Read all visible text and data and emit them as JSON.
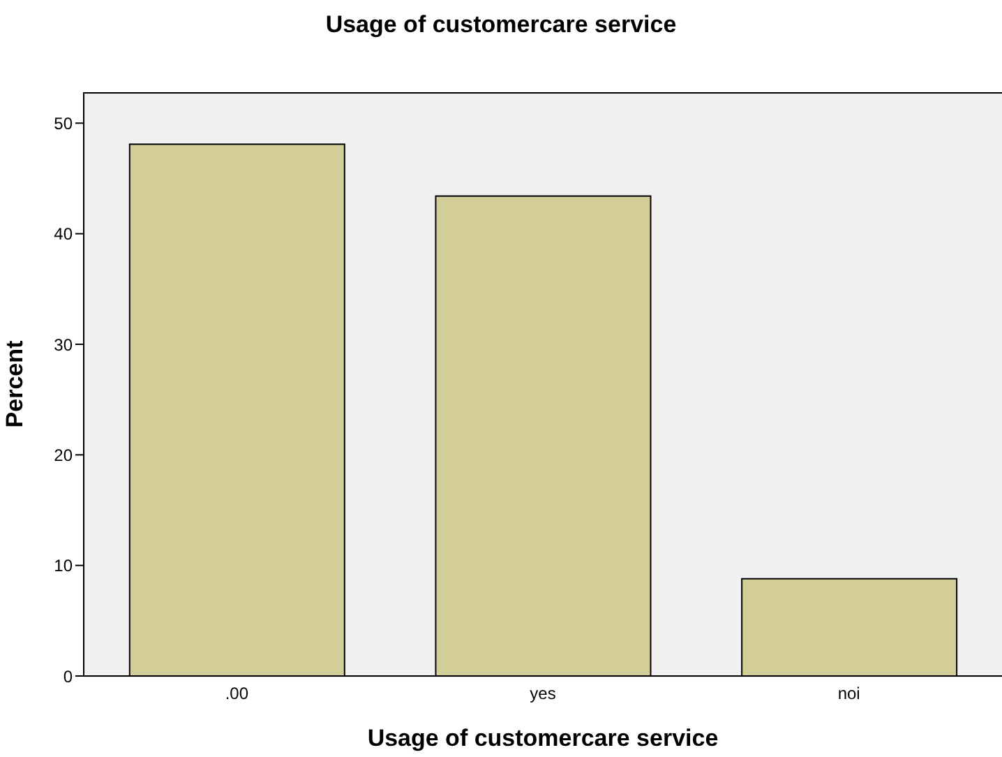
{
  "chart_data": {
    "type": "bar",
    "title": "Usage of customercare service",
    "xlabel": "Usage of customercare service",
    "ylabel": "Percent",
    "categories": [
      ".00",
      "yes",
      "noi"
    ],
    "values": [
      48.1,
      43.4,
      8.8
    ],
    "color": "#d3ce97",
    "ylim": [
      0,
      52.8
    ],
    "yticks": [
      0,
      10,
      20,
      30,
      40,
      50
    ],
    "grid": false,
    "legend": false
  }
}
